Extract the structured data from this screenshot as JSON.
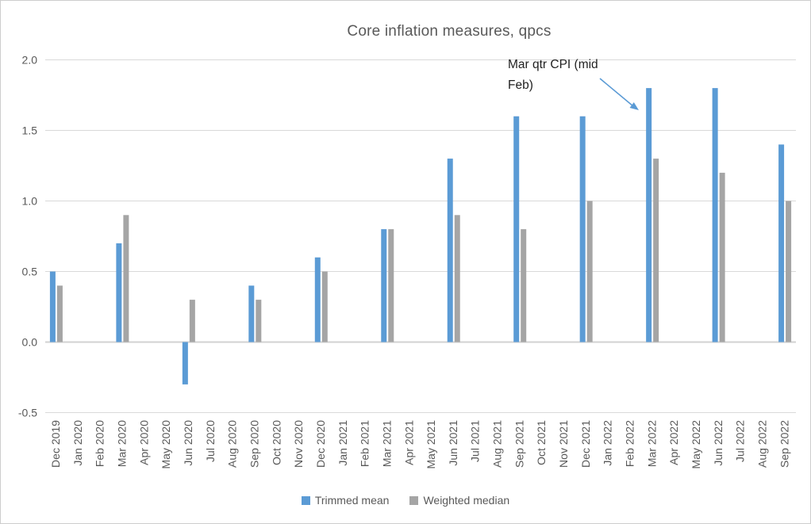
{
  "chart_data": {
    "type": "bar",
    "title": "Core inflation measures, qpcs",
    "categories": [
      "Dec 2019",
      "Jan 2020",
      "Feb 2020",
      "Mar 2020",
      "Apr 2020",
      "May 2020",
      "Jun 2020",
      "Jul 2020",
      "Aug 2020",
      "Sep 2020",
      "Oct 2020",
      "Nov 2020",
      "Dec 2020",
      "Jan 2021",
      "Feb 2021",
      "Mar 2021",
      "Apr 2021",
      "May 2021",
      "Jun 2021",
      "Jul 2021",
      "Aug 2021",
      "Sep 2021",
      "Oct 2021",
      "Nov 2021",
      "Dec 2021",
      "Jan 2022",
      "Feb 2022",
      "Mar 2022",
      "Apr 2022",
      "May 2022",
      "Jun 2022",
      "Jul 2022",
      "Aug 2022",
      "Sep 2022"
    ],
    "series": [
      {
        "name": "Trimmed mean",
        "color": "#5B9BD5",
        "values": [
          0.5,
          null,
          null,
          0.7,
          null,
          null,
          -0.3,
          null,
          null,
          0.4,
          null,
          null,
          0.6,
          null,
          null,
          0.8,
          null,
          null,
          1.3,
          null,
          null,
          1.6,
          null,
          null,
          1.6,
          null,
          null,
          1.8,
          null,
          null,
          1.8,
          null,
          null,
          1.4
        ]
      },
      {
        "name": "Weighted median",
        "color": "#A5A5A5",
        "values": [
          0.4,
          null,
          null,
          0.9,
          null,
          null,
          0.3,
          null,
          null,
          0.3,
          null,
          null,
          0.5,
          null,
          null,
          0.8,
          null,
          null,
          0.9,
          null,
          null,
          0.8,
          null,
          null,
          1.0,
          null,
          null,
          1.3,
          null,
          null,
          1.2,
          null,
          null,
          1.0
        ]
      }
    ],
    "y_tick_labels": [
      "2.0",
      "1.5",
      "1.0",
      "0.5",
      "0.0",
      "-0.5"
    ],
    "ylim": [
      -0.5,
      2.0
    ],
    "grid": true,
    "legend_position": "bottom",
    "annotation": {
      "lines": [
        "Mar qtr CPI (mid",
        "Feb)"
      ],
      "target_category": "Mar 2022",
      "arrow_color": "#5B9BD5"
    },
    "text_color": "#595959",
    "gridline_color": "#D9D9D9",
    "zero_line_color": "#D2D2D2"
  }
}
